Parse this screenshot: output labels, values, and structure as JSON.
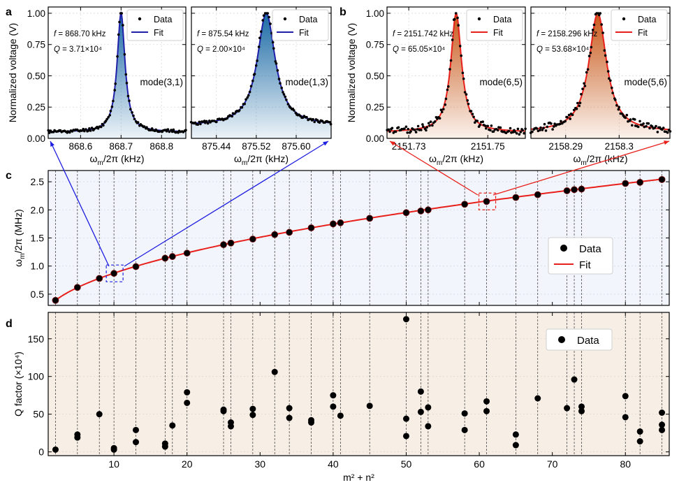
{
  "panel_letters": {
    "a": "a",
    "b": "b",
    "c": "c",
    "d": "d"
  },
  "colors": {
    "blue_fit": "#1f1fa8",
    "red_fit": "#e8201b",
    "blue_fill_top": "#1b6aa5",
    "red_fill_top": "#c8591b",
    "c_background": "#f3f5fc",
    "d_background": "#f7efe6",
    "data_point": "#000000"
  },
  "chart_data": [
    {
      "id": "a1",
      "type": "line",
      "ylabel": "Normalized voltage (V)",
      "xlabel": "ω_m/2π (kHz)",
      "xticks": [
        868.6,
        868.7,
        868.8
      ],
      "xtick_labels": [
        "868.6",
        "868.7",
        "868.8"
      ],
      "yticks": [
        0,
        0.25,
        0.5,
        0.75,
        1.0
      ],
      "ytick_labels": [
        "0.00",
        "0.25",
        "0.50",
        "0.75",
        "1.00"
      ],
      "xlim": [
        868.52,
        868.86
      ],
      "ylim": [
        0,
        1.05
      ],
      "center": 868.7,
      "gamma": 0.0118,
      "baseline": 0.05,
      "annotations": [
        "f = 868.70 kHz",
        "Q = 3.71×10⁴"
      ],
      "mode_label": "mode(3,1)",
      "legend": [
        "Data",
        "Fit"
      ],
      "fit_color": "blue"
    },
    {
      "id": "a2",
      "type": "line",
      "xlabel": "ω_m/2π (kHz)",
      "xticks": [
        875.44,
        875.52,
        875.6
      ],
      "xtick_labels": [
        "875.44",
        "875.52",
        "875.60"
      ],
      "xlim": [
        875.39,
        875.67
      ],
      "ylim": [
        0,
        1.05
      ],
      "center": 875.54,
      "gamma": 0.0219,
      "baseline": 0.1,
      "annotations": [
        "f = 875.54 kHz",
        "Q = 2.00×10⁴"
      ],
      "mode_label": "mode(1,3)",
      "legend": [
        "Data",
        "Fit"
      ],
      "fit_color": "blue"
    },
    {
      "id": "b1",
      "type": "line",
      "ylabel": "Normalized voltage (V)",
      "xlabel": "ω_m/2π (kHz)",
      "xticks": [
        2151.73,
        2151.75
      ],
      "xtick_labels": [
        "2151.73",
        "2151.75"
      ],
      "yticks": [
        0,
        0.25,
        0.5,
        0.75,
        1.0
      ],
      "ytick_labels": [
        "0.00",
        "0.25",
        "0.50",
        "0.75",
        "1.00"
      ],
      "xlim": [
        2151.7245,
        2151.7595
      ],
      "ylim": [
        0,
        1.05
      ],
      "center": 2151.742,
      "gamma": 0.00165,
      "baseline": 0.05,
      "annotations": [
        "f = 2151.742 kHz",
        "Q = 65.05×10⁴"
      ],
      "mode_label": "mode(6,5)",
      "legend": [
        "Data",
        "Fit"
      ],
      "fit_color": "red"
    },
    {
      "id": "b2",
      "type": "line",
      "xlabel": "ω_m/2π (kHz)",
      "xticks": [
        2158.29,
        2158.3
      ],
      "xtick_labels": [
        "2158.29",
        "2158.3"
      ],
      "xlim": [
        2158.2835,
        2158.3095
      ],
      "ylim": [
        0,
        1.05
      ],
      "center": 2158.296,
      "gamma": 0.002,
      "baseline": 0.05,
      "annotations": [
        "f = 2158.296 kHz",
        "Q = 53.68×10⁴"
      ],
      "mode_label": "mode(5,6)",
      "legend": [
        "Data",
        "Fit"
      ],
      "fit_color": "red"
    },
    {
      "id": "c",
      "type": "scatter",
      "ylabel": "ω_m/2π (MHz)",
      "xlim": [
        1,
        86
      ],
      "ylim": [
        0.3,
        2.7
      ],
      "yticks": [
        0.5,
        1.0,
        1.5,
        2.0,
        2.5
      ],
      "ytick_labels": [
        "0.5",
        "1.0",
        "1.5",
        "2.0",
        "2.5"
      ],
      "xticks": [
        10,
        20,
        30,
        40,
        50,
        60,
        70,
        80
      ],
      "xtick_labels": [
        "10",
        "20",
        "30",
        "40",
        "50",
        "60",
        "70",
        "80"
      ],
      "legend": [
        "Data",
        "Fit"
      ],
      "x": [
        2,
        5,
        8,
        10,
        13,
        17,
        18,
        20,
        25,
        26,
        29,
        32,
        34,
        37,
        40,
        41,
        45,
        50,
        52,
        53,
        58,
        61,
        65,
        68,
        72,
        73,
        74,
        80,
        82,
        85
      ],
      "y": [
        0.39,
        0.62,
        0.78,
        0.87,
        0.99,
        1.14,
        1.17,
        1.23,
        1.38,
        1.41,
        1.48,
        1.56,
        1.6,
        1.68,
        1.75,
        1.77,
        1.85,
        1.95,
        1.98,
        2.0,
        2.1,
        2.15,
        2.22,
        2.27,
        2.34,
        2.36,
        2.37,
        2.47,
        2.49,
        2.54
      ],
      "fit_coefficient": 0.2762
    },
    {
      "id": "d",
      "type": "scatter",
      "ylabel": "Q factor (×10⁴)",
      "xlabel": "m² + n²",
      "xlim": [
        1,
        86
      ],
      "ylim": [
        -5,
        185
      ],
      "yticks": [
        0,
        50,
        100,
        150
      ],
      "ytick_labels": [
        "0",
        "50",
        "100",
        "150"
      ],
      "xticks": [
        10,
        20,
        30,
        40,
        50,
        60,
        70,
        80
      ],
      "xtick_labels": [
        "10",
        "20",
        "30",
        "40",
        "50",
        "60",
        "70",
        "80"
      ],
      "legend": [
        "Data"
      ],
      "points": [
        [
          2,
          3
        ],
        [
          5,
          23
        ],
        [
          5,
          19
        ],
        [
          8,
          50
        ],
        [
          10,
          5
        ],
        [
          10,
          3
        ],
        [
          13,
          29
        ],
        [
          13,
          13
        ],
        [
          17,
          11
        ],
        [
          17,
          7
        ],
        [
          18,
          35
        ],
        [
          20,
          79
        ],
        [
          20,
          65
        ],
        [
          25,
          56
        ],
        [
          25,
          54
        ],
        [
          26,
          39
        ],
        [
          26,
          34
        ],
        [
          29,
          57
        ],
        [
          29,
          49
        ],
        [
          32,
          106
        ],
        [
          34,
          58
        ],
        [
          34,
          45
        ],
        [
          37,
          42
        ],
        [
          37,
          39
        ],
        [
          40,
          75
        ],
        [
          40,
          60
        ],
        [
          41,
          48
        ],
        [
          45,
          61
        ],
        [
          50,
          176
        ],
        [
          50,
          44
        ],
        [
          50,
          21
        ],
        [
          52,
          80
        ],
        [
          52,
          53
        ],
        [
          53,
          59
        ],
        [
          53,
          34
        ],
        [
          58,
          51
        ],
        [
          58,
          29
        ],
        [
          61,
          67
        ],
        [
          61,
          54
        ],
        [
          65,
          23
        ],
        [
          65,
          9
        ],
        [
          68,
          71
        ],
        [
          72,
          58
        ],
        [
          73,
          96
        ],
        [
          74,
          60
        ],
        [
          74,
          54
        ],
        [
          80,
          74
        ],
        [
          80,
          46
        ],
        [
          82,
          27
        ],
        [
          82,
          14
        ],
        [
          85,
          52
        ],
        [
          85,
          36
        ],
        [
          85,
          29
        ]
      ]
    }
  ]
}
